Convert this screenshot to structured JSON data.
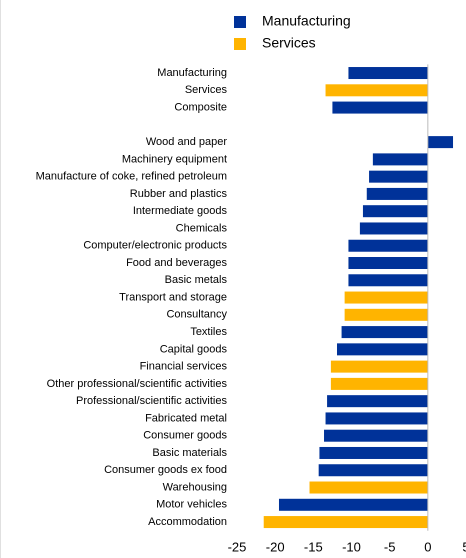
{
  "chart_data": {
    "type": "barh",
    "categories": [
      "Manufacturing",
      "Services",
      "Composite",
      null,
      "Wood and paper",
      "Machinery equipment",
      "Manufacture of coke, refined petroleum",
      "Rubber and plastics",
      "Intermediate goods",
      "Chemicals",
      "Computer/electronic products",
      "Food and beverages",
      "Basic metals",
      "Transport and storage",
      "Consultancy",
      "Textiles",
      "Capital goods",
      "Financial services",
      "Other professional/scientific activities",
      "Professional/scientific activities",
      "Fabricated metal",
      "Consumer goods",
      "Basic materials",
      "Consumer goods ex food",
      "Warehousing",
      "Motor vehicles",
      "Accommodation"
    ],
    "series": [
      {
        "name": "Manufacturing",
        "color": "#003299",
        "values": [
          -10.4,
          null,
          -12.5,
          null,
          3.3,
          -7.2,
          -7.7,
          -8.0,
          -8.5,
          -8.9,
          -10.4,
          -10.4,
          -10.4,
          null,
          null,
          -11.3,
          -11.9,
          null,
          null,
          -13.2,
          -13.4,
          -13.6,
          -14.2,
          -14.3,
          null,
          -19.5,
          null
        ]
      },
      {
        "name": "Services",
        "color": "#ffb400",
        "values": [
          null,
          -13.4,
          null,
          null,
          null,
          null,
          null,
          null,
          null,
          null,
          null,
          null,
          null,
          -10.9,
          -10.9,
          null,
          null,
          -12.7,
          -12.7,
          null,
          null,
          null,
          null,
          null,
          -15.5,
          null,
          -21.5
        ]
      }
    ],
    "xlim": [
      -25,
      5
    ],
    "xticks": [
      -25,
      -20,
      -15,
      -10,
      -5,
      0,
      5
    ],
    "legend": "top"
  }
}
